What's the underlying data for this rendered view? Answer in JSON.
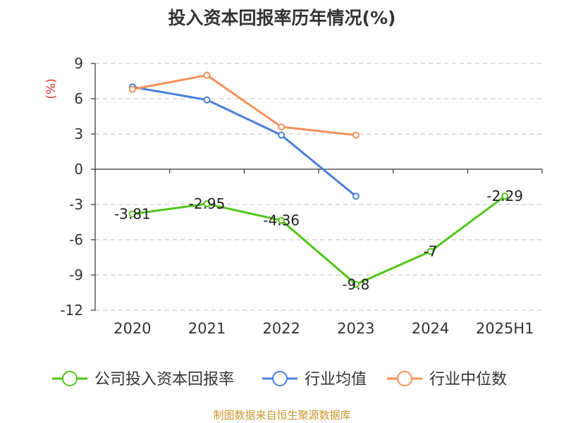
{
  "chart_data": {
    "type": "line",
    "title": "投入资本回报率历年情况(%)",
    "ylabel": "(%)",
    "xlabel": "",
    "categories": [
      "2020",
      "2021",
      "2022",
      "2023",
      "2024",
      "2025H1"
    ],
    "ylim": [
      -12,
      9
    ],
    "yticks": [
      9,
      6,
      3,
      0,
      -3,
      -6,
      -9,
      -12
    ],
    "grid": true,
    "legend_position": "bottom",
    "series": [
      {
        "name": "公司投入资本回报率",
        "color": "#52c41a",
        "values": [
          -3.81,
          -2.95,
          -4.36,
          -9.8,
          -7,
          -2.29
        ],
        "labels": [
          "-3.81",
          "-2.95",
          "-4.36",
          "-9.8",
          "-7",
          "-2.29"
        ]
      },
      {
        "name": "行业均值",
        "color": "#4a7fe0",
        "values": [
          7.0,
          5.9,
          2.9,
          -2.3,
          null,
          null
        ]
      },
      {
        "name": "行业中位数",
        "color": "#f5905a",
        "values": [
          6.8,
          8.0,
          3.6,
          2.9,
          null,
          null
        ]
      }
    ]
  },
  "footer": {
    "source": "制图数据来自恒生聚源数据库"
  }
}
